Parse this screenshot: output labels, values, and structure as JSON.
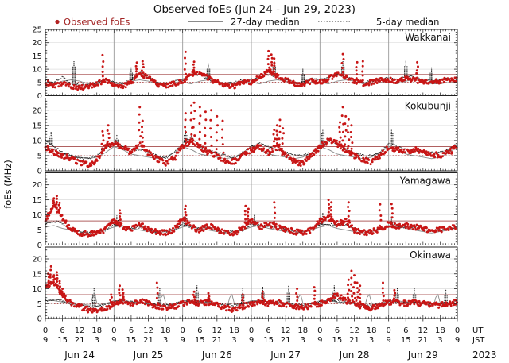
{
  "chart_data": {
    "type": "scatter",
    "title": "Observed foEs (Jun 24 - Jun 29, 2023)",
    "ylabel": "foEs (MHz)",
    "year": "2023",
    "time_rows": {
      "ut": "UT",
      "jst": "JST"
    },
    "legend": {
      "observed": "Observed foEs",
      "median27": "27-day median",
      "median5": "5-day median"
    },
    "days": [
      "Jun 24",
      "Jun 25",
      "Jun 26",
      "Jun 27",
      "Jun 28",
      "Jun 29"
    ],
    "ut_ticks": [
      0,
      6,
      12,
      18
    ],
    "jst_ticks": [
      9,
      15,
      21,
      3
    ],
    "hours_total": 144,
    "anchor_step_hours": 3,
    "thresholds": [
      {
        "value": 8,
        "style": "solid"
      },
      {
        "value": 5,
        "style": "dotted"
      }
    ],
    "colors": {
      "observed": "#c81616",
      "median27": "#8a8a8a",
      "median5": "#1a1a1a",
      "threshold_solid": "#b06060",
      "threshold_dotted": "#a02020",
      "grid_day": "#999999",
      "grid_h": "#dcdcdc",
      "axis": "#222222",
      "legend_observed_text": "#a22323"
    },
    "panels": [
      {
        "station": "Wakkanai",
        "ymax": 25,
        "yticks": [
          0,
          5,
          10,
          15,
          20,
          25
        ],
        "observed": [
          5,
          4,
          4.5,
          3.5,
          3,
          3.5,
          4.5,
          6,
          4.5,
          3.5,
          5,
          8,
          7,
          4.5,
          3.5,
          4.5,
          5.5,
          8,
          9,
          6.5,
          5,
          4,
          3.5,
          5,
          5,
          7,
          9.5,
          7.5,
          6,
          4.5,
          4,
          5.5,
          5,
          6.5,
          8,
          7,
          5.5,
          4.5,
          5,
          6,
          6,
          5.5,
          6.5,
          6,
          5,
          5,
          5.5,
          6,
          6
        ],
        "spikes": [
          [
            20,
            15.3
          ],
          [
            32,
            12.5
          ],
          [
            34,
            13
          ],
          [
            49,
            16.5
          ],
          [
            52,
            12.8
          ],
          [
            78,
            16.8
          ],
          [
            79,
            15.5
          ],
          [
            80,
            14
          ],
          [
            104,
            15.7
          ],
          [
            109,
            12.6
          ],
          [
            111,
            13
          ],
          [
            130,
            12.6
          ]
        ],
        "median5": [
          6,
          5,
          7,
          4.5,
          4,
          4,
          5,
          6,
          5,
          4.5,
          6,
          9,
          7,
          5,
          4.5,
          5.5,
          6,
          8,
          8,
          6,
          5,
          4.5,
          5,
          6,
          6,
          7,
          8,
          7,
          6,
          5,
          5,
          6.5,
          6,
          7,
          8,
          7,
          6,
          5,
          5.5,
          6.5,
          6.5,
          6,
          7.5,
          7,
          6,
          5.5,
          6,
          6.5,
          6.5
        ],
        "m5_spikes": [
          [
            10,
            13
          ],
          [
            30,
            10.5
          ],
          [
            57,
            12
          ],
          [
            80,
            13
          ],
          [
            90,
            10
          ],
          [
            104,
            13
          ],
          [
            126,
            13
          ],
          [
            135,
            10.5
          ]
        ],
        "median27_profile": [
          5,
          4.5,
          5.5,
          6,
          5.5,
          4.5,
          4.5,
          5,
          5
        ],
        "m27_spikes": []
      },
      {
        "station": "Kokubunji",
        "ymax": 24,
        "yticks": [
          0,
          5,
          10,
          15,
          20
        ],
        "observed": [
          8,
          6,
          5,
          4,
          2.5,
          2,
          3.5,
          8,
          9,
          8,
          6,
          9,
          6,
          4,
          2.5,
          4,
          8,
          10,
          8,
          6,
          5,
          3,
          3,
          5,
          7,
          8,
          6,
          8,
          5,
          3,
          2.5,
          5,
          8,
          10,
          9,
          7,
          5,
          3.5,
          3,
          5,
          8,
          7,
          6.5,
          7,
          6,
          5.5,
          5,
          6,
          8
        ],
        "spikes": [
          [
            20,
            13
          ],
          [
            22,
            15
          ],
          [
            33,
            21
          ],
          [
            34,
            16.5
          ],
          [
            49,
            19
          ],
          [
            51,
            21.5
          ],
          [
            52,
            22.5
          ],
          [
            54,
            21
          ],
          [
            56,
            19.5
          ],
          [
            58,
            20
          ],
          [
            60,
            18
          ],
          [
            62,
            16.5
          ],
          [
            80,
            13.5
          ],
          [
            81,
            15
          ],
          [
            82,
            16.8
          ],
          [
            83,
            14
          ],
          [
            103,
            16
          ],
          [
            104,
            21
          ],
          [
            105,
            18
          ],
          [
            106,
            17
          ],
          [
            107,
            15
          ]
        ],
        "median5": [
          10,
          8,
          6,
          5,
          4,
          4,
          5,
          8,
          9,
          8,
          7,
          7,
          6,
          5,
          4,
          6,
          9,
          11,
          8,
          7,
          6,
          5,
          4,
          6,
          8,
          9,
          8,
          7,
          6,
          5,
          5,
          6,
          8,
          10,
          9,
          7,
          6,
          5,
          5,
          6,
          9,
          8,
          7,
          7,
          6,
          6,
          6,
          7,
          9
        ],
        "m5_spikes": [
          [
            2,
            13
          ],
          [
            25,
            12
          ],
          [
            49,
            13.5
          ],
          [
            97,
            14
          ],
          [
            121,
            14
          ]
        ],
        "median27_profile": [
          8,
          7,
          5.5,
          5,
          4.5,
          4,
          4.5,
          6,
          8
        ],
        "m27_spikes": []
      },
      {
        "station": "Yamagawa",
        "ymax": 24,
        "yticks": [
          0,
          5,
          10,
          15,
          20
        ],
        "observed": [
          8,
          13,
          9,
          5,
          4,
          3.5,
          4,
          5,
          8,
          6,
          5,
          7,
          5,
          4.5,
          4,
          5,
          9,
          6,
          5,
          6.5,
          5,
          4.5,
          4,
          5.5,
          8,
          6,
          7,
          6,
          5,
          4.5,
          4,
          5,
          8,
          9,
          7,
          8,
          5,
          4,
          4.5,
          5,
          7,
          6,
          6.5,
          6,
          5.5,
          5,
          5,
          5.5,
          6
        ],
        "spikes": [
          [
            3,
            15.5
          ],
          [
            4,
            16.3
          ],
          [
            5,
            14
          ],
          [
            26,
            11.5
          ],
          [
            49,
            13
          ],
          [
            70,
            13
          ],
          [
            71,
            12
          ],
          [
            80,
            14.2
          ],
          [
            99,
            15
          ],
          [
            100,
            14.2
          ],
          [
            106,
            14.2
          ],
          [
            117,
            13.5
          ],
          [
            121,
            13.6
          ]
        ],
        "median5": [
          7,
          8,
          7,
          5,
          4.5,
          4,
          4.5,
          5,
          7,
          6,
          5.5,
          6,
          5,
          4.5,
          4.5,
          5,
          7,
          6,
          5.5,
          6,
          5,
          4.5,
          4.5,
          5,
          7,
          6.5,
          6,
          6,
          5,
          4.5,
          4.5,
          5,
          7,
          7,
          6.5,
          6.5,
          5.5,
          4.5,
          5,
          5.5,
          6.5,
          6,
          6,
          6,
          5.5,
          5,
          5,
          5.5,
          6
        ],
        "m5_spikes": [
          [
            25,
            10
          ],
          [
            49,
            10.5
          ],
          [
            73,
            10
          ],
          [
            97,
            10.5
          ],
          [
            121,
            9.5
          ]
        ],
        "median27_profile": [
          6,
          6.5,
          5.5,
          5,
          4.5,
          4,
          4.5,
          5,
          6
        ],
        "m27_spikes": []
      },
      {
        "station": "Okinawa",
        "ymax": 24,
        "yticks": [
          0,
          5,
          10,
          15,
          20
        ],
        "observed": [
          10,
          12,
          8,
          5,
          4,
          3,
          2.5,
          3,
          5,
          6,
          5,
          6,
          5,
          4,
          3.5,
          4,
          5,
          5.5,
          5,
          5.5,
          4.5,
          3.5,
          3,
          4,
          5,
          5.5,
          5,
          5.5,
          4.5,
          4,
          3.5,
          4.5,
          5,
          6,
          8,
          6,
          5,
          4,
          3.5,
          4.5,
          5.5,
          5.5,
          5,
          5.5,
          5,
          4.5,
          4.5,
          5,
          5.5
        ],
        "spikes": [
          [
            1,
            15
          ],
          [
            2,
            17.5
          ],
          [
            3,
            14.5
          ],
          [
            4,
            15.5
          ],
          [
            5,
            12.5
          ],
          [
            6,
            10
          ],
          [
            23,
            8
          ],
          [
            26,
            11
          ],
          [
            27,
            9.7
          ],
          [
            39,
            12
          ],
          [
            52,
            9
          ],
          [
            57,
            8.5
          ],
          [
            69,
            8
          ],
          [
            76,
            9
          ],
          [
            88,
            10
          ],
          [
            94,
            10.5
          ],
          [
            106,
            13
          ],
          [
            107,
            16
          ],
          [
            108,
            14.5
          ],
          [
            109,
            12
          ],
          [
            110,
            11
          ],
          [
            118,
            12
          ],
          [
            122,
            9.5
          ]
        ],
        "median5": [
          6,
          6.5,
          6,
          5,
          4.5,
          4,
          4,
          4.5,
          5.5,
          6,
          5.5,
          5.5,
          5,
          4.5,
          4.5,
          5,
          5.5,
          5.5,
          5.5,
          5.5,
          5,
          4.5,
          4.5,
          5,
          5.5,
          5.5,
          5.5,
          5.5,
          5,
          4.5,
          4.5,
          5,
          5.5,
          6,
          6,
          5.5,
          5,
          4.5,
          4.5,
          5,
          5.5,
          5.5,
          5.5,
          5.5,
          5,
          5,
          5,
          5,
          5.5
        ],
        "m5_spikes": [
          [
            17,
            10
          ],
          [
            40,
            10
          ],
          [
            53,
            11
          ],
          [
            69,
            10
          ],
          [
            76,
            10.5
          ],
          [
            85,
            11
          ],
          [
            101,
            11
          ],
          [
            123,
            10
          ],
          [
            129,
            10
          ],
          [
            140,
            9.5
          ]
        ],
        "median27_profile": [
          6,
          6,
          5.5,
          5.5,
          5,
          4.5,
          4.5,
          5,
          6
        ],
        "m27_spikes": [
          [
            17,
            9
          ],
          [
            41,
            9
          ],
          [
            65,
            9
          ],
          [
            89,
            9
          ],
          [
            113,
            9
          ],
          [
            137,
            9
          ]
        ]
      }
    ]
  }
}
